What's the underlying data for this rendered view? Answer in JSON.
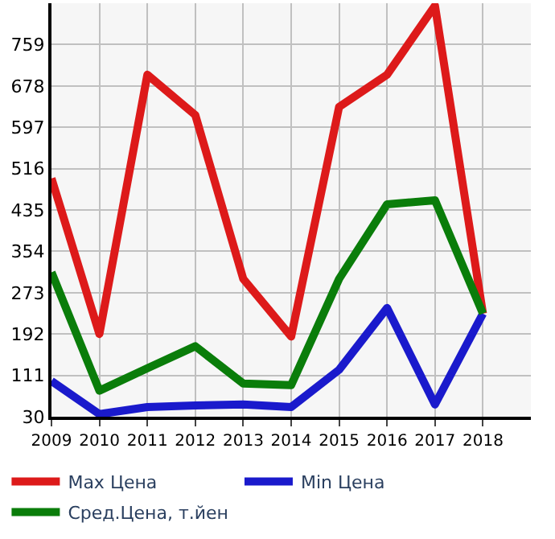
{
  "chart_data": {
    "type": "line",
    "x": [
      2009,
      2010,
      2011,
      2012,
      2013,
      2014,
      2015,
      2016,
      2017,
      2018
    ],
    "series": [
      {
        "name": "Max Цена",
        "color": "#dd1a1a",
        "values": [
          497,
          192,
          700,
          621,
          300,
          187,
          637,
          700,
          835,
          232
        ]
      },
      {
        "name": "Min Цена",
        "color": "#1a1acc",
        "values": [
          100,
          35,
          49,
          52,
          54,
          49,
          122,
          243,
          54,
          232
        ]
      },
      {
        "name": "Сред.Цена, т.йен",
        "color": "#0a7d0a",
        "values": [
          313,
          81,
          125,
          168,
          95,
          92,
          300,
          446,
          454,
          232
        ]
      }
    ],
    "xlim": [
      2009,
      2019
    ],
    "xticks": [
      2009,
      2010,
      2011,
      2012,
      2013,
      2014,
      2015,
      2016,
      2017,
      2018
    ],
    "ylim": [
      30,
      840
    ],
    "yticks": [
      30,
      111,
      192,
      273,
      354,
      435,
      516,
      597,
      678,
      759
    ],
    "grid": true,
    "legend": "bottom",
    "marker": "none",
    "line_style": "solid"
  }
}
